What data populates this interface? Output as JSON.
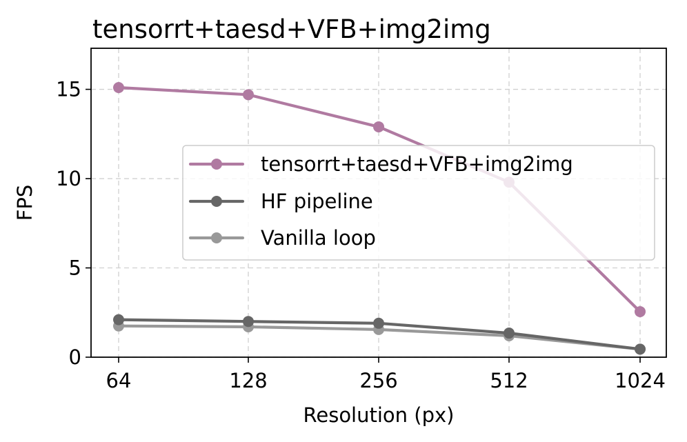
{
  "chart_data": {
    "type": "line",
    "title": "tensorrt+taesd+VFB+img2img",
    "xlabel": "Resolution (px)",
    "ylabel": "FPS",
    "categories": [
      "64",
      "128",
      "256",
      "512",
      "1024"
    ],
    "ylim": [
      0,
      17.3
    ],
    "yticks": [
      "0",
      "5",
      "10",
      "15"
    ],
    "grid": true,
    "legend_position": "center-right",
    "series": [
      {
        "name": "tensorrt+taesd+VFB+img2img",
        "color": "#b07aa1",
        "values": [
          15.1,
          14.7,
          12.9,
          9.8,
          2.55
        ]
      },
      {
        "name": "HF pipeline",
        "color": "#666666",
        "values": [
          2.1,
          2.0,
          1.9,
          1.35,
          0.45
        ]
      },
      {
        "name": "Vanilla loop",
        "color": "#999999",
        "values": [
          1.75,
          1.7,
          1.55,
          1.2,
          0.45
        ]
      }
    ]
  }
}
